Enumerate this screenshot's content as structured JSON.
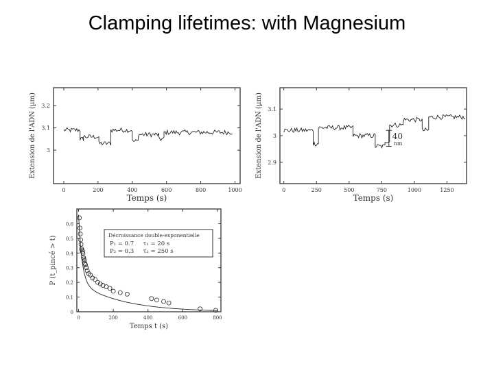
{
  "slide": {
    "title": "Clamping lifetimes: with Magnesium"
  },
  "colors": {
    "frame": "#333333",
    "trace": "#222222",
    "background": "#ffffff"
  },
  "chart_data": [
    {
      "type": "line",
      "xlabel": "Temps (s)",
      "ylabel": "Extension de l'ADN (µm)",
      "xlim": [
        -60,
        1030
      ],
      "ylim": [
        2.85,
        3.28
      ],
      "xticks": [
        0,
        200,
        400,
        600,
        800,
        1000
      ],
      "yticks": [
        3,
        3.1,
        3.2
      ],
      "segments": [
        {
          "x0": 0,
          "x1": 95,
          "y": 3.09
        },
        {
          "x0": 95,
          "x1": 115,
          "y": 3.05
        },
        {
          "x0": 115,
          "x1": 205,
          "y": 3.06
        },
        {
          "x0": 205,
          "x1": 275,
          "y": 3.03
        },
        {
          "x0": 275,
          "x1": 400,
          "y": 3.09
        },
        {
          "x0": 400,
          "x1": 435,
          "y": 3.04
        },
        {
          "x0": 435,
          "x1": 555,
          "y": 3.07
        },
        {
          "x0": 555,
          "x1": 585,
          "y": 3.05
        },
        {
          "x0": 585,
          "x1": 985,
          "y": 3.08
        }
      ]
    },
    {
      "type": "line",
      "xlabel": "Temps (s)",
      "ylabel": "Extension de l'ADN (µm)",
      "xlim": [
        -30,
        1400
      ],
      "ylim": [
        2.82,
        3.18
      ],
      "xticks": [
        0,
        250,
        500,
        750,
        1000,
        1250
      ],
      "yticks": [
        2.9,
        3,
        3.1
      ],
      "annotation": "40 nm",
      "segments": [
        {
          "x0": 0,
          "x1": 225,
          "y": 3.02
        },
        {
          "x0": 225,
          "x1": 265,
          "y": 2.97
        },
        {
          "x0": 265,
          "x1": 530,
          "y": 3.03
        },
        {
          "x0": 530,
          "x1": 700,
          "y": 3.0
        },
        {
          "x0": 700,
          "x1": 775,
          "y": 2.96
        },
        {
          "x0": 775,
          "x1": 810,
          "y": 2.98
        },
        {
          "x0": 810,
          "x1": 915,
          "y": 3.04
        },
        {
          "x0": 915,
          "x1": 1060,
          "y": 3.06
        },
        {
          "x0": 1060,
          "x1": 1110,
          "y": 3.02
        },
        {
          "x0": 1110,
          "x1": 1390,
          "y": 3.07
        }
      ]
    },
    {
      "type": "scatter",
      "xlabel": "Temps t (s)",
      "ylabel": "P (t_pincé > t)",
      "xlim": [
        -10,
        820
      ],
      "ylim": [
        0,
        0.7
      ],
      "xticks": [
        0,
        200,
        400,
        600,
        800
      ],
      "yticks": [
        0,
        0.1,
        0.2,
        0.3,
        0.4,
        0.5,
        0.6
      ],
      "ytick_labels": [
        "0",
        "0.1",
        "0.2",
        "0.3",
        "0.4",
        "0.5",
        "0.6"
      ],
      "legend": {
        "title": "Décroissance double-exponentielle",
        "rows": [
          "P₁ = 0.7     τ₁ = 20 s",
          "P₂ = 0.3     τ₂ = 250 s"
        ]
      },
      "fit": {
        "p1": 0.7,
        "tau1": 20,
        "p2": 0.3,
        "tau2": 250,
        "scale": 0.66
      },
      "points": [
        {
          "x": 5,
          "y": 0.64
        },
        {
          "x": 8,
          "y": 0.57
        },
        {
          "x": 10,
          "y": 0.53
        },
        {
          "x": 12,
          "y": 0.49
        },
        {
          "x": 14,
          "y": 0.46
        },
        {
          "x": 17,
          "y": 0.43
        },
        {
          "x": 20,
          "y": 0.42
        },
        {
          "x": 22,
          "y": 0.41
        },
        {
          "x": 25,
          "y": 0.4
        },
        {
          "x": 28,
          "y": 0.37
        },
        {
          "x": 30,
          "y": 0.36
        },
        {
          "x": 33,
          "y": 0.35
        },
        {
          "x": 36,
          "y": 0.33
        },
        {
          "x": 40,
          "y": 0.32
        },
        {
          "x": 45,
          "y": 0.3
        },
        {
          "x": 50,
          "y": 0.28
        },
        {
          "x": 58,
          "y": 0.26
        },
        {
          "x": 68,
          "y": 0.25
        },
        {
          "x": 80,
          "y": 0.23
        },
        {
          "x": 95,
          "y": 0.22
        },
        {
          "x": 110,
          "y": 0.2
        },
        {
          "x": 125,
          "y": 0.19
        },
        {
          "x": 140,
          "y": 0.18
        },
        {
          "x": 160,
          "y": 0.17
        },
        {
          "x": 180,
          "y": 0.16
        },
        {
          "x": 200,
          "y": 0.14
        },
        {
          "x": 240,
          "y": 0.13
        },
        {
          "x": 280,
          "y": 0.12
        },
        {
          "x": 420,
          "y": 0.09
        },
        {
          "x": 450,
          "y": 0.08
        },
        {
          "x": 490,
          "y": 0.07
        },
        {
          "x": 520,
          "y": 0.06
        },
        {
          "x": 700,
          "y": 0.02
        },
        {
          "x": 790,
          "y": 0.01
        }
      ]
    }
  ]
}
